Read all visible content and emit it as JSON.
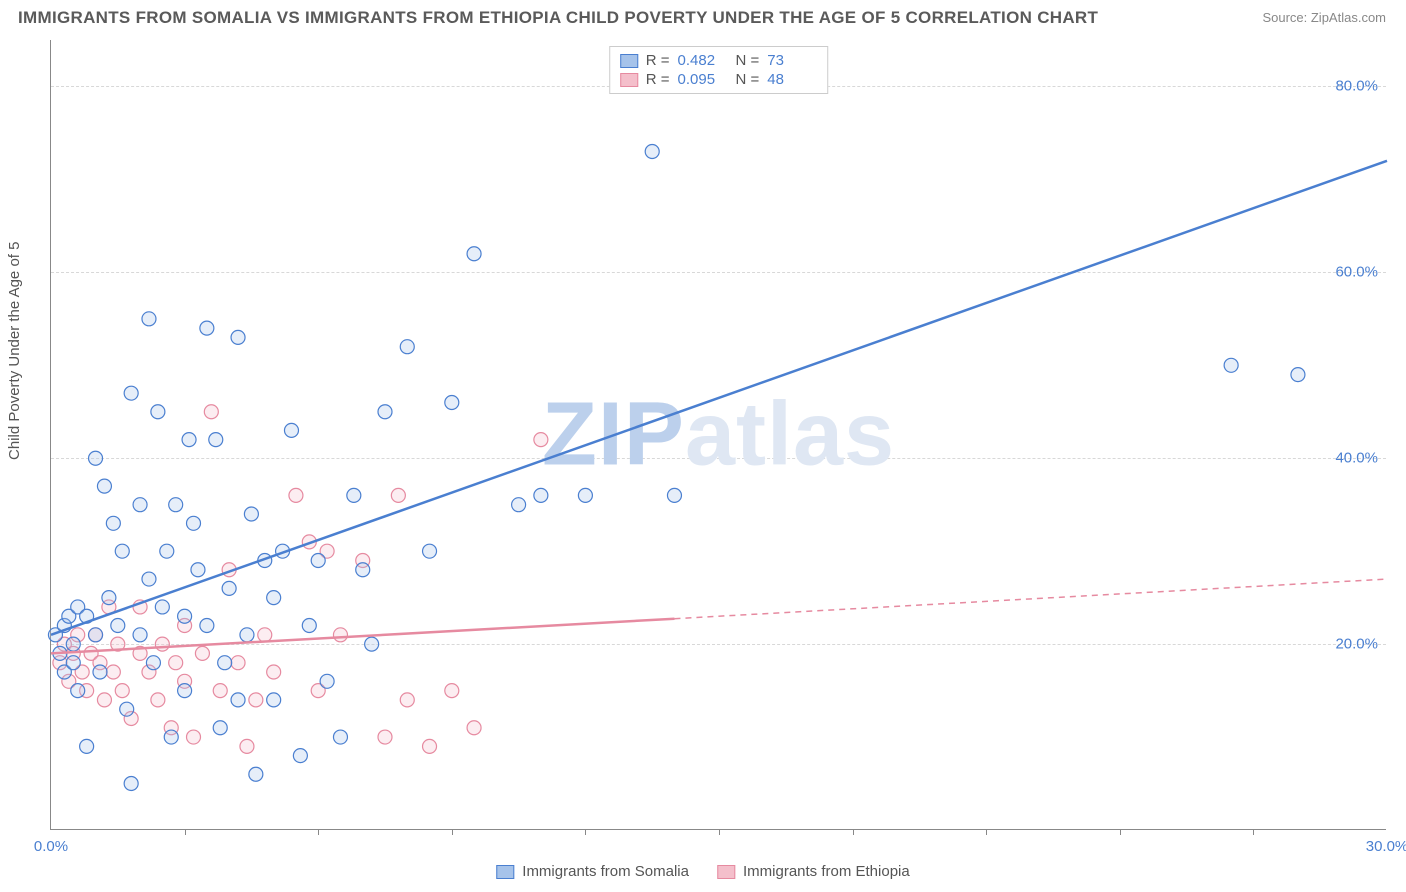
{
  "title": "IMMIGRANTS FROM SOMALIA VS IMMIGRANTS FROM ETHIOPIA CHILD POVERTY UNDER THE AGE OF 5 CORRELATION CHART",
  "source_label": "Source: ZipAtlas.com",
  "y_axis_label": "Child Poverty Under the Age of 5",
  "watermark_a": "ZIP",
  "watermark_b": "atlas",
  "chart": {
    "type": "scatter",
    "xlim": [
      0,
      30
    ],
    "ylim": [
      0,
      85
    ],
    "x_ticks": [
      0,
      30
    ],
    "x_tick_labels": [
      "0.0%",
      "30.0%"
    ],
    "x_minor_ticks": [
      3,
      6,
      9,
      12,
      15,
      18,
      21,
      24,
      27
    ],
    "y_ticks": [
      20,
      40,
      60,
      80
    ],
    "y_tick_labels": [
      "20.0%",
      "40.0%",
      "60.0%",
      "80.0%"
    ],
    "background_color": "#ffffff",
    "grid_color": "#d8d8d8",
    "axis_color": "#888888",
    "tick_label_color": "#4a7fd0",
    "tick_label_fontsize": 15,
    "title_color": "#5a5a5a",
    "title_fontsize": 17,
    "marker_radius": 7,
    "marker_stroke_width": 1.2,
    "marker_fill_opacity": 0.28,
    "trend_line_width": 2.5,
    "trend_dash_pattern": "6,5"
  },
  "series": {
    "somalia": {
      "label": "Immigrants from Somalia",
      "R": "0.482",
      "N": "73",
      "color_stroke": "#4a7fd0",
      "color_fill": "#a6c3ea",
      "trend": {
        "x1": 0,
        "y1": 21,
        "x2": 30,
        "y2": 72,
        "solid_until_x": 30
      },
      "points": [
        [
          0.1,
          21
        ],
        [
          0.2,
          19
        ],
        [
          0.3,
          22
        ],
        [
          0.3,
          17
        ],
        [
          0.4,
          23
        ],
        [
          0.5,
          20
        ],
        [
          0.5,
          18
        ],
        [
          0.6,
          24
        ],
        [
          0.6,
          15
        ],
        [
          0.8,
          9
        ],
        [
          0.8,
          23
        ],
        [
          1.0,
          21
        ],
        [
          1.0,
          40
        ],
        [
          1.1,
          17
        ],
        [
          1.2,
          37
        ],
        [
          1.3,
          25
        ],
        [
          1.4,
          33
        ],
        [
          1.5,
          22
        ],
        [
          1.6,
          30
        ],
        [
          1.7,
          13
        ],
        [
          1.8,
          5
        ],
        [
          1.8,
          47
        ],
        [
          2.0,
          21
        ],
        [
          2.0,
          35
        ],
        [
          2.2,
          55
        ],
        [
          2.2,
          27
        ],
        [
          2.3,
          18
        ],
        [
          2.4,
          45
        ],
        [
          2.5,
          24
        ],
        [
          2.6,
          30
        ],
        [
          2.7,
          10
        ],
        [
          2.8,
          35
        ],
        [
          3.0,
          15
        ],
        [
          3.0,
          23
        ],
        [
          3.1,
          42
        ],
        [
          3.2,
          33
        ],
        [
          3.3,
          28
        ],
        [
          3.5,
          54
        ],
        [
          3.5,
          22
        ],
        [
          3.7,
          42
        ],
        [
          3.8,
          11
        ],
        [
          3.9,
          18
        ],
        [
          4.0,
          26
        ],
        [
          4.2,
          53
        ],
        [
          4.2,
          14
        ],
        [
          4.4,
          21
        ],
        [
          4.5,
          34
        ],
        [
          4.6,
          6
        ],
        [
          4.8,
          29
        ],
        [
          5.0,
          14
        ],
        [
          5.0,
          25
        ],
        [
          5.2,
          30
        ],
        [
          5.4,
          43
        ],
        [
          5.6,
          8
        ],
        [
          5.8,
          22
        ],
        [
          6.0,
          29
        ],
        [
          6.2,
          16
        ],
        [
          6.5,
          10
        ],
        [
          6.8,
          36
        ],
        [
          7.0,
          28
        ],
        [
          7.2,
          20
        ],
        [
          7.5,
          45
        ],
        [
          8.0,
          52
        ],
        [
          8.5,
          30
        ],
        [
          9.0,
          46
        ],
        [
          9.5,
          62
        ],
        [
          10.5,
          35
        ],
        [
          11.0,
          36
        ],
        [
          12.0,
          36
        ],
        [
          13.5,
          73
        ],
        [
          14.0,
          36
        ],
        [
          26.5,
          50
        ],
        [
          28.0,
          49
        ]
      ]
    },
    "ethiopia": {
      "label": "Immigrants from Ethiopia",
      "R": "0.095",
      "N": "48",
      "color_stroke": "#e68aa0",
      "color_fill": "#f4bfcb",
      "trend": {
        "x1": 0,
        "y1": 19,
        "x2": 30,
        "y2": 27,
        "solid_until_x": 14
      },
      "points": [
        [
          0.2,
          18
        ],
        [
          0.3,
          20
        ],
        [
          0.4,
          16
        ],
        [
          0.5,
          19
        ],
        [
          0.6,
          21
        ],
        [
          0.7,
          17
        ],
        [
          0.8,
          15
        ],
        [
          0.9,
          19
        ],
        [
          1.0,
          21
        ],
        [
          1.1,
          18
        ],
        [
          1.2,
          14
        ],
        [
          1.3,
          24
        ],
        [
          1.4,
          17
        ],
        [
          1.5,
          20
        ],
        [
          1.6,
          15
        ],
        [
          1.8,
          12
        ],
        [
          2.0,
          19
        ],
        [
          2.0,
          24
        ],
        [
          2.2,
          17
        ],
        [
          2.4,
          14
        ],
        [
          2.5,
          20
        ],
        [
          2.7,
          11
        ],
        [
          2.8,
          18
        ],
        [
          3.0,
          22
        ],
        [
          3.0,
          16
        ],
        [
          3.2,
          10
        ],
        [
          3.4,
          19
        ],
        [
          3.6,
          45
        ],
        [
          3.8,
          15
        ],
        [
          4.0,
          28
        ],
        [
          4.2,
          18
        ],
        [
          4.4,
          9
        ],
        [
          4.6,
          14
        ],
        [
          4.8,
          21
        ],
        [
          5.0,
          17
        ],
        [
          5.5,
          36
        ],
        [
          5.8,
          31
        ],
        [
          6.0,
          15
        ],
        [
          6.2,
          30
        ],
        [
          6.5,
          21
        ],
        [
          7.0,
          29
        ],
        [
          7.5,
          10
        ],
        [
          7.8,
          36
        ],
        [
          8.0,
          14
        ],
        [
          8.5,
          9
        ],
        [
          9.0,
          15
        ],
        [
          9.5,
          11
        ],
        [
          11.0,
          42
        ]
      ]
    }
  },
  "legend_top": {
    "R_label": "R =",
    "N_label": "N ="
  }
}
